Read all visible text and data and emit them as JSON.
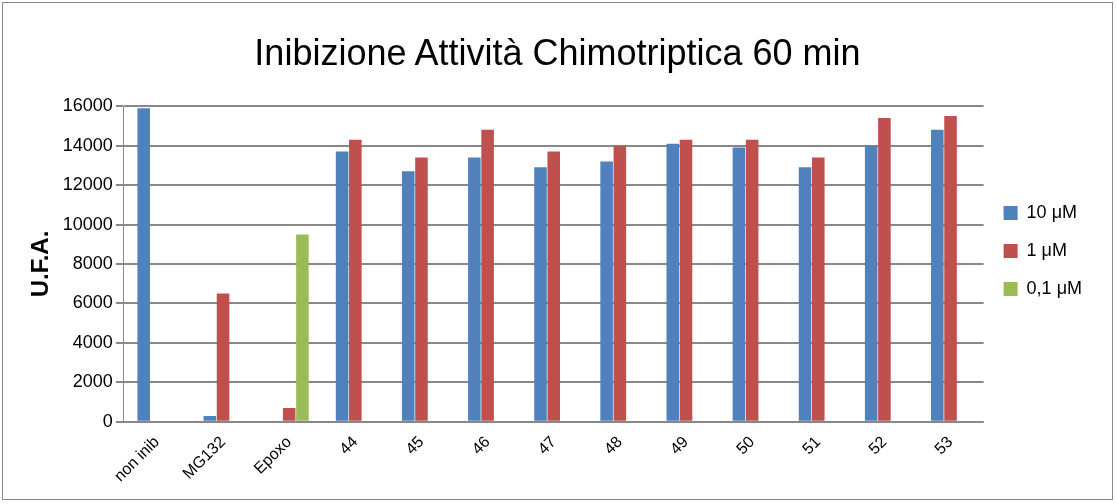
{
  "chart_data": {
    "type": "bar",
    "title": "Inibizione Attività Chimotriptica 60 min",
    "ylabel": "U.F.A.",
    "categories": [
      "non inib",
      "MG132",
      "Epoxo",
      "44",
      "45",
      "46",
      "47",
      "48",
      "49",
      "50",
      "51",
      "52",
      "53"
    ],
    "series": [
      {
        "name": "10 μM",
        "color": "#4f81bd",
        "values": [
          15900,
          300,
          null,
          13700,
          12700,
          13400,
          12900,
          13200,
          14100,
          13900,
          12900,
          14000,
          14800
        ]
      },
      {
        "name": "1 μM",
        "color": "#c0504d",
        "values": [
          null,
          6500,
          700,
          14300,
          13400,
          14800,
          13700,
          14000,
          14300,
          14300,
          13400,
          15400,
          15500
        ]
      },
      {
        "name": "0,1 μM",
        "color": "#9bbb59",
        "values": [
          null,
          null,
          9500,
          null,
          null,
          null,
          null,
          null,
          null,
          null,
          null,
          null,
          null
        ]
      }
    ],
    "ylim": [
      0,
      16000
    ],
    "yticks": [
      0,
      2000,
      4000,
      6000,
      8000,
      10000,
      12000,
      14000,
      16000
    ],
    "grid": "y",
    "legend": "right"
  }
}
